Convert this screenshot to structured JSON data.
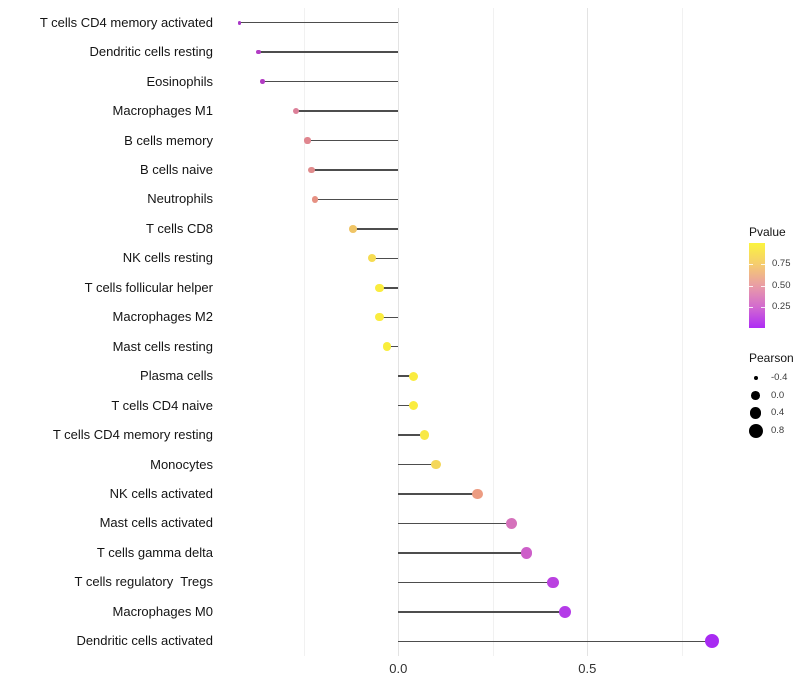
{
  "chart_data": {
    "type": "lollipop",
    "title": "",
    "xlabel": "",
    "ylabel": "",
    "x_range": [
      -0.477,
      0.885
    ],
    "grid": {
      "major_values": [
        0.0,
        0.5
      ],
      "minor_values": [
        -0.25,
        0.25,
        0.75
      ]
    },
    "x_ticks": [
      {
        "label": "0.0",
        "value": 0.0
      },
      {
        "label": "0.5",
        "value": 0.5
      }
    ],
    "points": [
      {
        "label": "T cells CD4 memory activated",
        "pearson": -0.42,
        "pvalue": 0.13,
        "color": "#a936c8"
      },
      {
        "label": "Dendritic cells resting",
        "pearson": -0.37,
        "pvalue": 0.16,
        "color": "#b23cc4"
      },
      {
        "label": "Eosinophils",
        "pearson": -0.36,
        "pvalue": 0.16,
        "color": "#b23cc4"
      },
      {
        "label": "Macrophages M1",
        "pearson": -0.27,
        "pvalue": 0.4,
        "color": "#dc8099"
      },
      {
        "label": "B cells memory",
        "pearson": -0.24,
        "pvalue": 0.43,
        "color": "#e0868f"
      },
      {
        "label": "B cells naive",
        "pearson": -0.23,
        "pvalue": 0.44,
        "color": "#e08b8c"
      },
      {
        "label": "Neutrophils",
        "pearson": -0.22,
        "pvalue": 0.47,
        "color": "#e69183"
      },
      {
        "label": "T cells CD8",
        "pearson": -0.12,
        "pvalue": 0.68,
        "color": "#f0c566"
      },
      {
        "label": "NK cells resting",
        "pearson": -0.07,
        "pvalue": 0.78,
        "color": "#f6dc52"
      },
      {
        "label": "T cells follicular helper",
        "pearson": -0.05,
        "pvalue": 0.88,
        "color": "#faec3f"
      },
      {
        "label": "Macrophages M2",
        "pearson": -0.05,
        "pvalue": 0.88,
        "color": "#faec3f"
      },
      {
        "label": "Mast cells resting",
        "pearson": -0.03,
        "pvalue": 0.93,
        "color": "#f9ee3c"
      },
      {
        "label": "Plasma cells",
        "pearson": 0.04,
        "pvalue": 0.9,
        "color": "#faec3f"
      },
      {
        "label": "T cells CD4 naive",
        "pearson": 0.04,
        "pvalue": 0.9,
        "color": "#faec3f"
      },
      {
        "label": "T cells CD4 memory resting",
        "pearson": 0.07,
        "pvalue": 0.84,
        "color": "#f8e847"
      },
      {
        "label": "Monocytes",
        "pearson": 0.1,
        "pvalue": 0.74,
        "color": "#f4d75b"
      },
      {
        "label": "NK cells activated",
        "pearson": 0.21,
        "pvalue": 0.5,
        "color": "#ec9c82"
      },
      {
        "label": "Mast cells activated",
        "pearson": 0.3,
        "pvalue": 0.3,
        "color": "#d571bb"
      },
      {
        "label": "T cells gamma delta",
        "pearson": 0.34,
        "pvalue": 0.24,
        "color": "#cd5fc9"
      },
      {
        "label": "T cells regulatory  Tregs",
        "pearson": 0.41,
        "pvalue": 0.15,
        "color": "#ba41e0"
      },
      {
        "label": "Macrophages M0",
        "pearson": 0.44,
        "pvalue": 0.13,
        "color": "#b43be8"
      },
      {
        "label": "Dendritic cells activated",
        "pearson": 0.83,
        "pvalue": 0.04,
        "color": "#a82bf2"
      }
    ],
    "legend": {
      "pvalue": {
        "title": "Pvalue",
        "ticks": [
          {
            "label": "0.75",
            "value": 0.75
          },
          {
            "label": "0.50",
            "value": 0.5
          },
          {
            "label": "0.25",
            "value": 0.25
          }
        ],
        "gradient_bottom_to_top": [
          "#ae2bf5",
          "#d36bcf",
          "#e99da5",
          "#f5cc6f",
          "#fbf43e"
        ]
      },
      "pearson": {
        "title": "Pearson",
        "entries": [
          {
            "label": "-0.4",
            "value": -0.4
          },
          {
            "label": "0.0",
            "value": 0.0
          },
          {
            "label": "0.4",
            "value": 0.4
          },
          {
            "label": "0.8",
            "value": 0.8
          }
        ]
      }
    }
  }
}
